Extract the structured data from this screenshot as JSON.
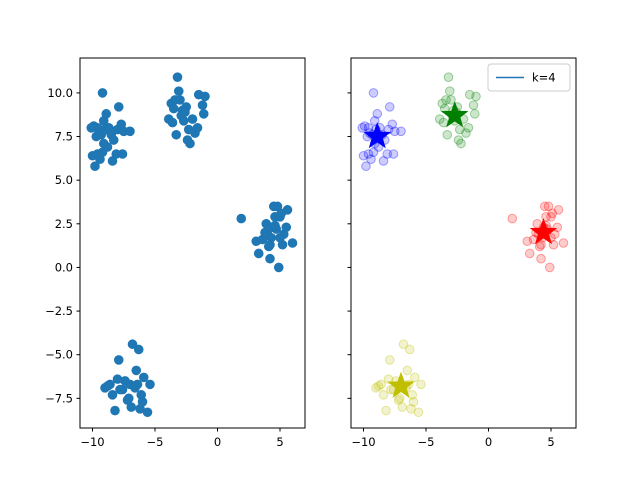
{
  "chart_data": [
    {
      "type": "scatter",
      "title": "",
      "xlabel": "",
      "ylabel": "",
      "xlim": [
        -11,
        7
      ],
      "ylim": [
        -9.2,
        12
      ],
      "xticks": [
        -10,
        -5,
        0,
        5
      ],
      "xtick_labels": [
        "−10",
        "−5",
        "0",
        "5"
      ],
      "yticks": [
        -7.5,
        -5.0,
        -2.5,
        0.0,
        2.5,
        5.0,
        7.5,
        10.0
      ],
      "ytick_labels": [
        "−7.5",
        "−5.0",
        "−2.5",
        "0.0",
        "2.5",
        "5.0",
        "7.5",
        "10.0"
      ],
      "grid": false,
      "series": [
        {
          "color": "#1f77b4",
          "points": [
            [
              -10.0,
              6.4
            ],
            [
              -9.6,
              6.5
            ],
            [
              -9.2,
              6.6
            ],
            [
              -9.4,
              6.2
            ],
            [
              -9.8,
              5.8
            ],
            [
              -9.2,
              10.0
            ],
            [
              -9.9,
              8.1
            ],
            [
              -9.6,
              8.0
            ],
            [
              -9.5,
              7.7
            ],
            [
              -9.7,
              7.5
            ],
            [
              -9.3,
              7.6
            ],
            [
              -9.0,
              7.9
            ],
            [
              -9.1,
              8.4
            ],
            [
              -8.9,
              8.8
            ],
            [
              -8.7,
              8.0
            ],
            [
              -8.5,
              7.6
            ],
            [
              -8.4,
              6.1
            ],
            [
              -8.1,
              6.5
            ],
            [
              -8.3,
              7.3
            ],
            [
              -8.0,
              7.9
            ],
            [
              -7.9,
              9.2
            ],
            [
              -7.7,
              8.2
            ],
            [
              -7.5,
              7.8
            ],
            [
              -7.6,
              6.5
            ],
            [
              -7.0,
              7.8
            ],
            [
              -10.1,
              8.0
            ],
            [
              -8.8,
              6.9
            ],
            [
              -9.1,
              7.1
            ],
            [
              -3.9,
              8.5
            ],
            [
              -3.7,
              9.4
            ],
            [
              -3.5,
              9.1
            ],
            [
              -3.3,
              7.6
            ],
            [
              -3.2,
              10.9
            ],
            [
              -3.1,
              10.1
            ],
            [
              -3.0,
              9.6
            ],
            [
              -2.9,
              8.7
            ],
            [
              -2.7,
              8.4
            ],
            [
              -2.5,
              9.2
            ],
            [
              -2.3,
              7.9
            ],
            [
              -2.2,
              7.1
            ],
            [
              -2.0,
              8.5
            ],
            [
              -1.8,
              7.7
            ],
            [
              -1.5,
              9.9
            ],
            [
              -1.2,
              9.3
            ],
            [
              -1.0,
              9.8
            ],
            [
              -1.1,
              8.8
            ],
            [
              -2.8,
              9.0
            ],
            [
              -3.6,
              8.3
            ],
            [
              -2.4,
              7.3
            ],
            [
              -1.6,
              8.0
            ],
            [
              -3.4,
              9.6
            ],
            [
              -2.6,
              8.9
            ],
            [
              1.9,
              2.8
            ],
            [
              3.1,
              1.5
            ],
            [
              3.3,
              0.8
            ],
            [
              3.6,
              1.6
            ],
            [
              3.8,
              2.0
            ],
            [
              3.9,
              2.5
            ],
            [
              4.0,
              1.9
            ],
            [
              4.1,
              1.2
            ],
            [
              4.2,
              0.5
            ],
            [
              4.3,
              1.7
            ],
            [
              4.4,
              2.3
            ],
            [
              4.5,
              3.5
            ],
            [
              4.6,
              2.9
            ],
            [
              4.7,
              2.2
            ],
            [
              4.8,
              3.5
            ],
            [
              4.9,
              0.0
            ],
            [
              5.0,
              2.9
            ],
            [
              5.1,
              3.1
            ],
            [
              5.2,
              1.3
            ],
            [
              5.3,
              1.9
            ],
            [
              5.5,
              2.3
            ],
            [
              5.6,
              3.3
            ],
            [
              6.0,
              1.4
            ],
            [
              4.6,
              2.4
            ],
            [
              4.2,
              1.3
            ],
            [
              5.0,
              1.7
            ],
            [
              -9.0,
              -6.9
            ],
            [
              -8.6,
              -6.7
            ],
            [
              -8.4,
              -7.3
            ],
            [
              -8.2,
              -8.2
            ],
            [
              -8.0,
              -6.4
            ],
            [
              -7.9,
              -5.3
            ],
            [
              -7.6,
              -7.0
            ],
            [
              -7.4,
              -6.5
            ],
            [
              -7.2,
              -7.6
            ],
            [
              -7.0,
              -6.7
            ],
            [
              -6.9,
              -8.0
            ],
            [
              -6.8,
              -4.4
            ],
            [
              -6.6,
              -6.9
            ],
            [
              -6.5,
              -5.9
            ],
            [
              -6.4,
              -6.7
            ],
            [
              -6.3,
              -4.7
            ],
            [
              -6.2,
              -8.1
            ],
            [
              -6.1,
              -7.3
            ],
            [
              -6.0,
              -7.7
            ],
            [
              -5.9,
              -6.3
            ],
            [
              -5.6,
              -8.3
            ],
            [
              -5.4,
              -6.7
            ],
            [
              -7.8,
              -7.0
            ],
            [
              -8.8,
              -6.8
            ],
            [
              -7.1,
              -7.5
            ]
          ]
        }
      ]
    },
    {
      "type": "scatter",
      "title": "",
      "xlabel": "",
      "ylabel": "",
      "xlim": [
        -11,
        7
      ],
      "ylim": [
        -9.2,
        12
      ],
      "xticks": [
        -10,
        -5,
        0,
        5
      ],
      "xtick_labels": [
        "−10",
        "−5",
        "0",
        "5"
      ],
      "yticks": [
        -7.5,
        -5.0,
        -2.5,
        0.0,
        2.5,
        5.0,
        7.5,
        10.0
      ],
      "ytick_labels": [],
      "grid": false,
      "legend": {
        "position": "top-right",
        "entries": [
          {
            "label": "k=4",
            "color": "#1f77b4",
            "marker": "line"
          }
        ]
      },
      "series": [
        {
          "color": "#0000ff",
          "alpha": 0.2,
          "points": [
            [
              -10.0,
              6.4
            ],
            [
              -9.6,
              6.5
            ],
            [
              -9.2,
              6.6
            ],
            [
              -9.4,
              6.2
            ],
            [
              -9.8,
              5.8
            ],
            [
              -9.2,
              10.0
            ],
            [
              -9.9,
              8.1
            ],
            [
              -9.6,
              8.0
            ],
            [
              -9.5,
              7.7
            ],
            [
              -9.7,
              7.5
            ],
            [
              -9.3,
              7.6
            ],
            [
              -9.0,
              7.9
            ],
            [
              -9.1,
              8.4
            ],
            [
              -8.9,
              8.8
            ],
            [
              -8.7,
              8.0
            ],
            [
              -8.5,
              7.6
            ],
            [
              -8.4,
              6.1
            ],
            [
              -8.1,
              6.5
            ],
            [
              -8.3,
              7.3
            ],
            [
              -8.0,
              7.9
            ],
            [
              -7.9,
              9.2
            ],
            [
              -7.7,
              8.2
            ],
            [
              -7.5,
              7.8
            ],
            [
              -7.6,
              6.5
            ],
            [
              -7.0,
              7.8
            ],
            [
              -10.1,
              8.0
            ],
            [
              -8.8,
              6.9
            ],
            [
              -9.1,
              7.1
            ]
          ]
        },
        {
          "color": "#008000",
          "alpha": 0.2,
          "points": [
            [
              -3.9,
              8.5
            ],
            [
              -3.7,
              9.4
            ],
            [
              -3.5,
              9.1
            ],
            [
              -3.3,
              7.6
            ],
            [
              -3.2,
              10.9
            ],
            [
              -3.1,
              10.1
            ],
            [
              -3.0,
              9.6
            ],
            [
              -2.9,
              8.7
            ],
            [
              -2.7,
              8.4
            ],
            [
              -2.5,
              9.2
            ],
            [
              -2.3,
              7.9
            ],
            [
              -2.2,
              7.1
            ],
            [
              -2.0,
              8.5
            ],
            [
              -1.8,
              7.7
            ],
            [
              -1.5,
              9.9
            ],
            [
              -1.2,
              9.3
            ],
            [
              -1.0,
              9.8
            ],
            [
              -1.1,
              8.8
            ],
            [
              -2.8,
              9.0
            ],
            [
              -3.6,
              8.3
            ],
            [
              -2.4,
              7.3
            ],
            [
              -1.6,
              8.0
            ],
            [
              -3.4,
              9.6
            ],
            [
              -2.6,
              8.9
            ]
          ]
        },
        {
          "color": "#ff0000",
          "alpha": 0.2,
          "points": [
            [
              1.9,
              2.8
            ],
            [
              3.1,
              1.5
            ],
            [
              3.3,
              0.8
            ],
            [
              3.6,
              1.6
            ],
            [
              3.8,
              2.0
            ],
            [
              3.9,
              2.5
            ],
            [
              4.0,
              1.9
            ],
            [
              4.1,
              1.2
            ],
            [
              4.2,
              0.5
            ],
            [
              4.3,
              1.7
            ],
            [
              4.4,
              2.3
            ],
            [
              4.5,
              3.5
            ],
            [
              4.6,
              2.9
            ],
            [
              4.7,
              2.2
            ],
            [
              4.8,
              3.5
            ],
            [
              4.9,
              0.0
            ],
            [
              5.0,
              2.9
            ],
            [
              5.1,
              3.1
            ],
            [
              5.2,
              1.3
            ],
            [
              5.3,
              1.9
            ],
            [
              5.5,
              2.3
            ],
            [
              5.6,
              3.3
            ],
            [
              6.0,
              1.4
            ],
            [
              4.6,
              2.4
            ],
            [
              4.2,
              1.3
            ],
            [
              5.0,
              1.7
            ]
          ]
        },
        {
          "color": "#bfbf00",
          "alpha": 0.2,
          "points": [
            [
              -9.0,
              -6.9
            ],
            [
              -8.6,
              -6.7
            ],
            [
              -8.4,
              -7.3
            ],
            [
              -8.2,
              -8.2
            ],
            [
              -8.0,
              -6.4
            ],
            [
              -7.9,
              -5.3
            ],
            [
              -7.6,
              -7.0
            ],
            [
              -7.4,
              -6.5
            ],
            [
              -7.2,
              -7.6
            ],
            [
              -7.0,
              -6.7
            ],
            [
              -6.9,
              -8.0
            ],
            [
              -6.8,
              -4.4
            ],
            [
              -6.6,
              -6.9
            ],
            [
              -6.5,
              -5.9
            ],
            [
              -6.4,
              -6.7
            ],
            [
              -6.3,
              -4.7
            ],
            [
              -6.2,
              -8.1
            ],
            [
              -6.1,
              -7.3
            ],
            [
              -6.0,
              -7.7
            ],
            [
              -5.9,
              -6.3
            ],
            [
              -5.6,
              -8.3
            ],
            [
              -5.4,
              -6.7
            ],
            [
              -7.8,
              -7.0
            ],
            [
              -8.8,
              -6.8
            ],
            [
              -7.1,
              -7.5
            ]
          ]
        }
      ],
      "centroids": [
        {
          "x": -8.9,
          "y": 7.5,
          "color": "#0000ff"
        },
        {
          "x": -2.7,
          "y": 8.7,
          "color": "#008000"
        },
        {
          "x": 4.4,
          "y": 2.0,
          "color": "#ff0000"
        },
        {
          "x": -7.0,
          "y": -6.8,
          "color": "#bfbf00"
        }
      ]
    }
  ]
}
